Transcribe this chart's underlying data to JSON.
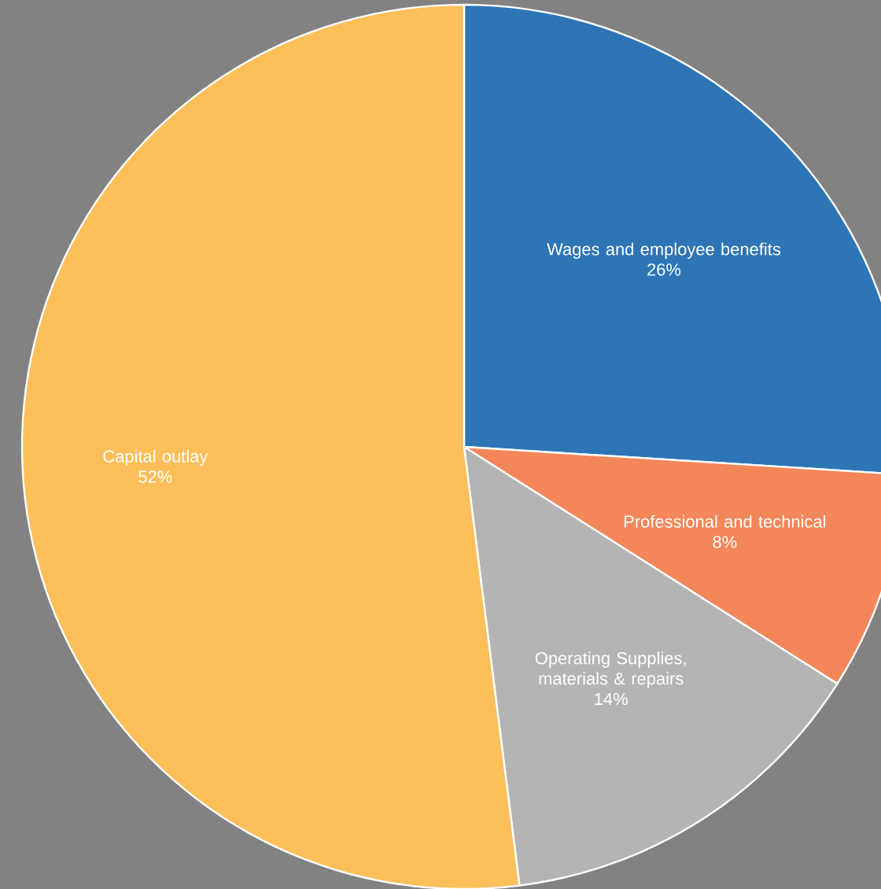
{
  "chart_data": {
    "type": "pie",
    "categories": [
      "Wages and employee benefits",
      "Professional and technical",
      "Operating Supplies, materials & repairs",
      "Capital outlay"
    ],
    "values": [
      26,
      8,
      14,
      52
    ],
    "value_labels": [
      "26%",
      "8%",
      "14%",
      "52%"
    ],
    "colors": [
      "#2e75b6",
      "#f4875a",
      "#b4b4b4",
      "#fdbf5a"
    ]
  }
}
